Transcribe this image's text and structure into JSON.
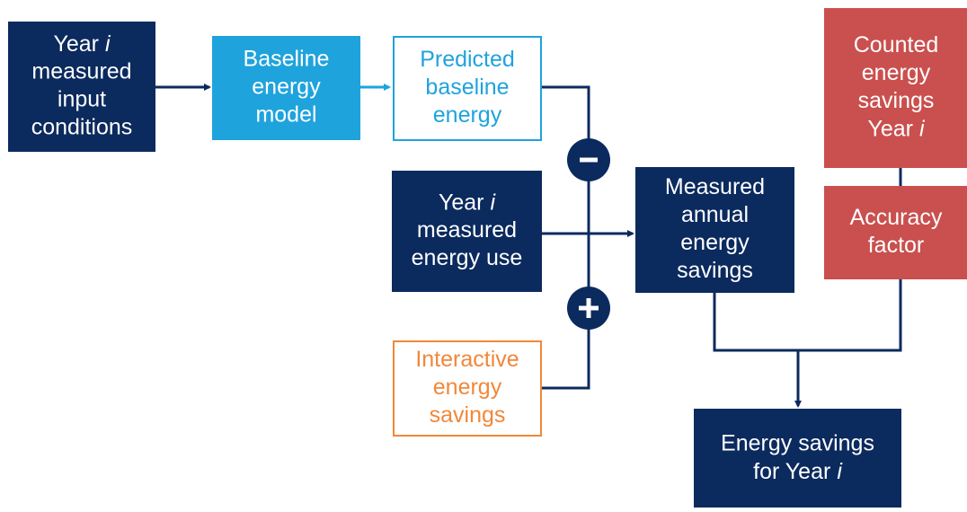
{
  "nodes": [
    {
      "lines": [
        {
          "text": "Year",
          "italic": "i"
        },
        "measured",
        "input",
        "conditions"
      ]
    },
    {
      "lines": [
        "Baseline",
        "energy",
        "model"
      ]
    },
    {
      "lines": [
        "Predicted",
        "baseline",
        "energy"
      ]
    },
    {
      "lines": [
        {
          "text": "Year",
          "italic": "i"
        },
        "measured",
        "energy use"
      ]
    },
    {
      "lines": [
        "Interactive",
        "energy",
        "savings"
      ]
    },
    {
      "lines": [
        "Measured",
        "annual",
        "energy",
        "savings"
      ]
    },
    {
      "lines": [
        "Counted",
        "energy",
        "savings",
        {
          "text": "Year",
          "italic": "i"
        }
      ]
    },
    {
      "lines": [
        "Accuracy",
        "factor"
      ]
    },
    {
      "lines": [
        "Energy savings",
        {
          "text": "for Year",
          "italic": "i"
        }
      ]
    }
  ]
}
